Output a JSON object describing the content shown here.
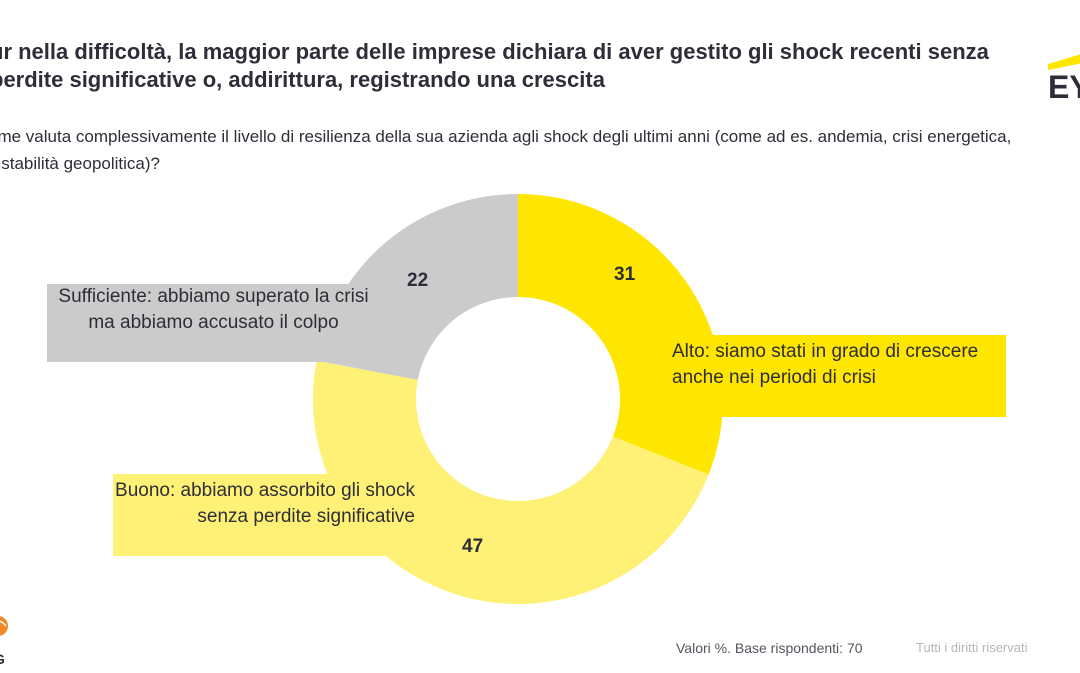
{
  "title": "ur nella difficoltà, la maggior parte delle imprese dichiara di aver gestito gli shock recenti senza perdite significative o, addirittura, registrando una crescita",
  "question": "ome valuta complessivamente il livello di resilienza della sua azienda agli shock degli ultimi anni (come ad es. andemia, crisi energetica, instabilità geopolitica)?",
  "logo_text": "EY",
  "kpmg_text": "G",
  "footer": {
    "note": "Valori %. Base rispondenti: 70",
    "rights": "Tutti i diritti riservati"
  },
  "colors": {
    "alto": "#ffe600",
    "buono": "#fff176",
    "sufficiente": "#cbcbcb"
  },
  "chart_data": {
    "type": "pie",
    "donut": true,
    "total": 100,
    "slices": [
      {
        "label": "Alto: siamo stati in grado di crescere anche nei periodi di crisi",
        "value": 31,
        "value_text": "31"
      },
      {
        "label": "Buono: abbiamo assorbito gli shock senza perdite significative",
        "value": 47,
        "value_text": "47"
      },
      {
        "label": "Sufficiente: abbiamo superato la crisi ma abbiamo accusato il colpo",
        "value": 22,
        "value_text": "22"
      }
    ]
  }
}
